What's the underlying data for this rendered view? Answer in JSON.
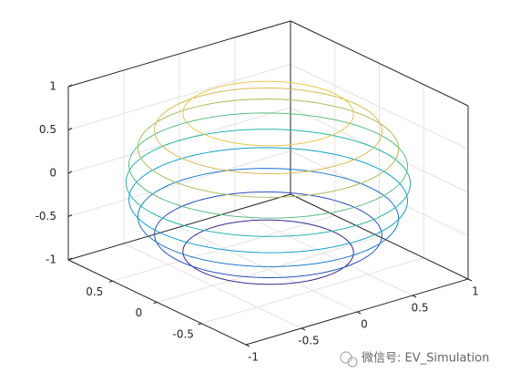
{
  "chart_data": {
    "type": "contour3",
    "levels": [
      -0.8,
      -0.6,
      -0.4,
      -0.2,
      0,
      0.2,
      0.4,
      0.6,
      0.8
    ],
    "colors": [
      "#352a87",
      "#2b4fb4",
      "#1f78c8",
      "#13a0c4",
      "#2ab2a6",
      "#5cbb84",
      "#a5be5f",
      "#d8ba55",
      "#e8c84a"
    ],
    "xlim": [
      -1,
      1
    ],
    "ylim": [
      -1,
      1
    ],
    "zlim": [
      -1,
      1
    ],
    "xticks": [
      -1,
      -0.5,
      0,
      0.5,
      1
    ],
    "yticks": [
      -0.5,
      0,
      0.5
    ],
    "zticks": [
      -1,
      -0.5,
      0,
      0.5,
      1
    ],
    "grid": true,
    "watermark": "微信号: EV_Simulation"
  }
}
